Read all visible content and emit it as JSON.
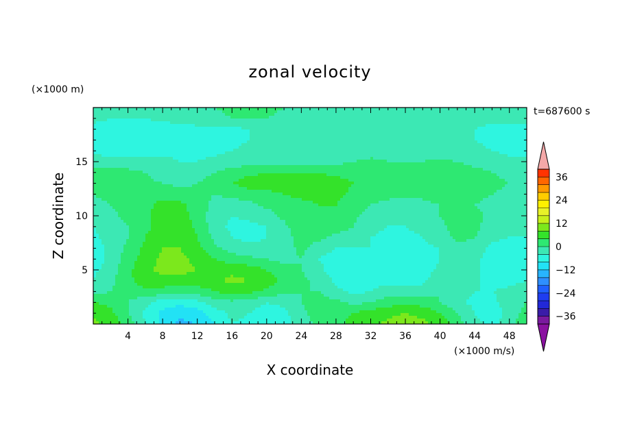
{
  "chart_data": {
    "type": "heatmap",
    "title": "zonal velocity",
    "xlabel": "X coordinate",
    "ylabel": "Z coordinate",
    "x_unit": "(×1000 m/s)",
    "y_unit": "(×1000 m)",
    "time_label": "t=687600 s",
    "xlim": [
      0,
      50
    ],
    "ylim": [
      0,
      20
    ],
    "x_ticks": [
      4,
      8,
      12,
      16,
      20,
      24,
      28,
      32,
      36,
      40,
      44,
      48
    ],
    "y_ticks": [
      5,
      10,
      15
    ],
    "grid": false,
    "colorbar": {
      "levels": [
        -40,
        -36,
        -32,
        -28,
        -24,
        -20,
        -16,
        -12,
        -8,
        -4,
        0,
        4,
        8,
        12,
        16,
        20,
        24,
        28,
        32,
        36,
        40
      ],
      "colors": [
        "#7a1a9e",
        "#3a1ca8",
        "#2228d8",
        "#1f3df0",
        "#2060ff",
        "#2f8fff",
        "#28b4ff",
        "#22e2f5",
        "#2ef5e0",
        "#3ce8b4",
        "#2ee872",
        "#34e22a",
        "#7ce81c",
        "#c8f01c",
        "#e8f228",
        "#fff000",
        "#ffcc00",
        "#ff9900",
        "#ff6600",
        "#ff3300"
      ],
      "tick_labels": [
        "36",
        "24",
        "12",
        "0",
        "−12",
        "−24",
        "−36"
      ],
      "tick_values": [
        36,
        24,
        12,
        0,
        -12,
        -24,
        -36
      ],
      "under_color": "#8a12a0",
      "over_color": "#f4a8a8"
    },
    "field": {
      "x": [
        0,
        2,
        4,
        6,
        8,
        10,
        12,
        14,
        16,
        18,
        20,
        22,
        24,
        26,
        28,
        30,
        32,
        34,
        36,
        38,
        40,
        42,
        44,
        46,
        48,
        50
      ],
      "z": [
        0,
        1,
        2,
        3,
        4,
        5,
        6,
        7,
        8,
        9,
        10,
        11,
        12,
        13,
        14,
        15,
        16,
        17,
        18,
        19,
        20
      ],
      "values": [
        [
          9,
          7,
          2,
          -4,
          -9,
          -13,
          -12,
          -8,
          -4,
          -5,
          -7,
          -6,
          -2,
          1,
          3,
          5,
          7,
          9,
          10,
          9,
          7,
          2,
          -3,
          -5,
          -2,
          4
        ],
        [
          7,
          5,
          0,
          -5,
          -9,
          -11,
          -10,
          -6,
          -3,
          -4,
          -6,
          -5,
          -1,
          2,
          3,
          4,
          6,
          7,
          8,
          7,
          4,
          0,
          -4,
          -6,
          -3,
          2
        ],
        [
          4,
          3,
          0,
          -3,
          -6,
          -7,
          -5,
          -2,
          -1,
          -2,
          -4,
          -3,
          0,
          2,
          1,
          -1,
          0,
          2,
          3,
          2,
          0,
          -3,
          -5,
          -5,
          -2,
          0
        ],
        [
          -2,
          0,
          2,
          3,
          2,
          1,
          2,
          4,
          6,
          5,
          3,
          1,
          0,
          0,
          -3,
          -5,
          -4,
          -2,
          -2,
          -2,
          0,
          -2,
          -4,
          -4,
          -3,
          -2
        ],
        [
          -4,
          -1,
          3,
          6,
          7,
          7,
          6,
          7,
          9,
          8,
          6,
          3,
          1,
          -1,
          -5,
          -7,
          -6,
          -5,
          -6,
          -5,
          -1,
          0,
          -3,
          -6,
          -5,
          -4
        ],
        [
          -5,
          -2,
          3,
          7,
          9,
          9,
          8,
          7,
          7,
          6,
          4,
          1,
          0,
          -3,
          -6,
          -7,
          -6,
          -7,
          -8,
          -6,
          -3,
          0,
          -3,
          -6,
          -7,
          -6
        ],
        [
          -6,
          -3,
          2,
          6,
          9,
          9,
          7,
          4,
          2,
          1,
          0,
          -1,
          0,
          -4,
          -6,
          -6,
          -5,
          -6,
          -7,
          -6,
          -4,
          -1,
          -3,
          -6,
          -8,
          -6
        ],
        [
          -6,
          -3,
          1,
          5,
          8,
          8,
          5,
          1,
          -2,
          -3,
          -3,
          -2,
          1,
          -2,
          -4,
          -4,
          -4,
          -5,
          -5,
          -5,
          -4,
          -1,
          -2,
          -5,
          -6,
          -5
        ],
        [
          -5,
          -2,
          0,
          4,
          7,
          8,
          4,
          -1,
          -4,
          -5,
          -4,
          -2,
          2,
          1,
          -1,
          -2,
          -4,
          -5,
          -5,
          -4,
          -2,
          1,
          0,
          -3,
          -4,
          -4
        ],
        [
          -4,
          -2,
          0,
          3,
          6,
          7,
          3,
          -2,
          -5,
          -5,
          -4,
          -1,
          3,
          3,
          2,
          0,
          -3,
          -4,
          -4,
          -3,
          -1,
          2,
          1,
          -2,
          -3,
          -3
        ],
        [
          -3,
          -1,
          1,
          3,
          6,
          6,
          2,
          -2,
          -4,
          -3,
          -2,
          1,
          3,
          4,
          3,
          1,
          -2,
          -3,
          -3,
          -2,
          0,
          2,
          1,
          -1,
          -3,
          -3
        ],
        [
          -2,
          0,
          2,
          3,
          5,
          5,
          2,
          -1,
          -2,
          -1,
          1,
          2,
          3,
          4,
          4,
          2,
          0,
          -1,
          -2,
          -1,
          0,
          1,
          0,
          -1,
          -2,
          -2
        ],
        [
          0,
          2,
          3,
          3,
          3,
          2,
          1,
          0,
          1,
          2,
          3,
          4,
          5,
          5,
          5,
          3,
          2,
          1,
          1,
          1,
          2,
          2,
          1,
          0,
          -1,
          -1
        ],
        [
          1,
          3,
          2,
          1,
          0,
          -1,
          0,
          2,
          4,
          6,
          6,
          6,
          6,
          6,
          6,
          4,
          3,
          2,
          2,
          2,
          3,
          3,
          2,
          1,
          0,
          0
        ],
        [
          1,
          2,
          1,
          0,
          -2,
          -3,
          -2,
          0,
          2,
          3,
          4,
          4,
          4,
          4,
          3,
          2,
          2,
          1,
          1,
          1,
          2,
          2,
          1,
          0,
          -1,
          -1
        ],
        [
          -2,
          -2,
          -2,
          -3,
          -3,
          -4,
          -4,
          -3,
          -2,
          -2,
          -2,
          -2,
          -2,
          -1,
          -1,
          0,
          1,
          0,
          0,
          0,
          1,
          0,
          -1,
          -2,
          -3,
          -3
        ],
        [
          -5,
          -6,
          -6,
          -6,
          -5,
          -5,
          -5,
          -5,
          -4,
          -3,
          -3,
          -3,
          -3,
          -2,
          -2,
          -2,
          -2,
          -2,
          -3,
          -3,
          -3,
          -3,
          -3,
          -4,
          -5,
          -5
        ],
        [
          -6,
          -7,
          -7,
          -7,
          -6,
          -6,
          -6,
          -6,
          -5,
          -4,
          -4,
          -4,
          -4,
          -3,
          -3,
          -3,
          -3,
          -3,
          -3,
          -3,
          -3,
          -4,
          -4,
          -5,
          -6,
          -6
        ],
        [
          -5,
          -6,
          -6,
          -6,
          -6,
          -5,
          -5,
          -5,
          -5,
          -4,
          -4,
          -4,
          -3,
          -3,
          -3,
          -3,
          -3,
          -3,
          -3,
          -3,
          -3,
          -3,
          -4,
          -5,
          -5,
          -5
        ],
        [
          -3,
          -4,
          -4,
          -4,
          -3,
          -3,
          -2,
          -1,
          0,
          0,
          0,
          -1,
          -1,
          -2,
          -2,
          -2,
          -2,
          -2,
          -2,
          -2,
          -2,
          -2,
          -3,
          -3,
          -3,
          -3
        ],
        [
          -2,
          -3,
          -3,
          -3,
          -2,
          -2,
          -1,
          0,
          1,
          1,
          1,
          0,
          -1,
          -1,
          -1,
          -1,
          -1,
          -1,
          -1,
          -1,
          -1,
          -1,
          -2,
          -2,
          -2,
          -2
        ]
      ]
    }
  }
}
